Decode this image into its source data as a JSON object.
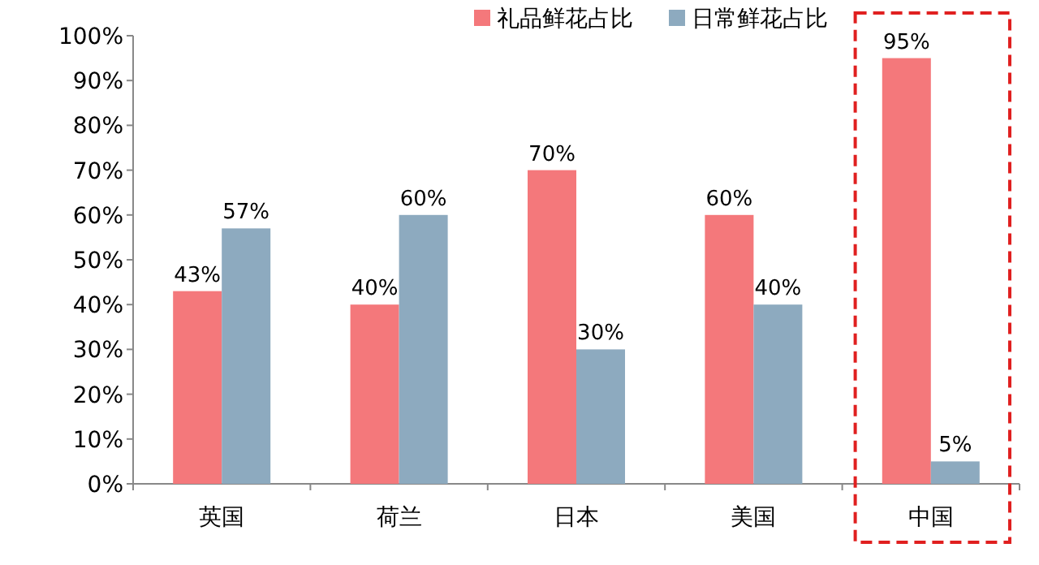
{
  "chart_data": {
    "type": "bar",
    "categories": [
      "英国",
      "荷兰",
      "日本",
      "美国",
      "中国"
    ],
    "series": [
      {
        "name": "礼品鲜花占比",
        "color": "#f4787b",
        "values": [
          43,
          40,
          70,
          60,
          95
        ],
        "value_labels": [
          "43%",
          "40%",
          "70%",
          "60%",
          "95%"
        ]
      },
      {
        "name": "日常鲜花占比",
        "color": "#8daabf",
        "values": [
          57,
          60,
          30,
          40,
          5
        ],
        "value_labels": [
          "57%",
          "60%",
          "30%",
          "40%",
          "5%"
        ]
      }
    ],
    "ylim": [
      0,
      100
    ],
    "yticks": [
      {
        "value": 0,
        "label": "0%"
      },
      {
        "value": 10,
        "label": "10%"
      },
      {
        "value": 20,
        "label": "20%"
      },
      {
        "value": 30,
        "label": "30%"
      },
      {
        "value": 40,
        "label": "40%"
      },
      {
        "value": 50,
        "label": "50%"
      },
      {
        "value": 60,
        "label": "60%"
      },
      {
        "value": 70,
        "label": "70%"
      },
      {
        "value": 80,
        "label": "80%"
      },
      {
        "value": 90,
        "label": "90%"
      },
      {
        "value": 100,
        "label": "100%"
      }
    ],
    "legend": "top",
    "grid": false
  }
}
